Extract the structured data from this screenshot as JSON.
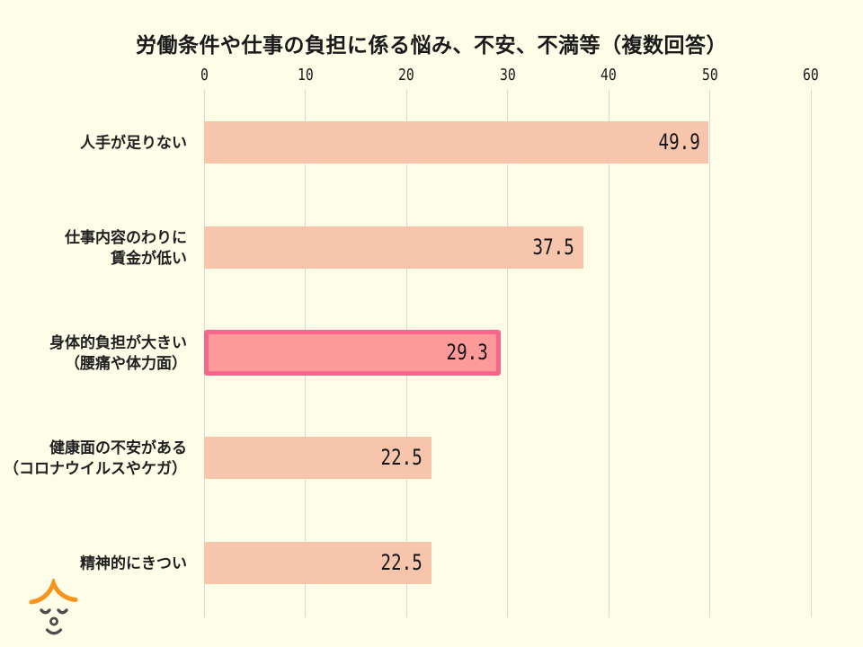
{
  "title": "労働条件や仕事の負担に係る悩み、不安、不満等（複数回答）",
  "chart_data": {
    "type": "bar",
    "orientation": "horizontal",
    "title": "労働条件や仕事の負担に係る悩み、不安、不満等（複数回答）",
    "categories": [
      "人手が足りない",
      "仕事内容のわりに賃金が低い",
      "身体的負担が大きい（腰痛や体力面）",
      "健康面の不安がある（コロナウイルスやケガ）",
      "精神的にきつい"
    ],
    "category_lines": [
      [
        "人手が足りない"
      ],
      [
        "仕事内容のわりに",
        "賃金が低い"
      ],
      [
        "身体的負担が大きい",
        "（腰痛や体力面）"
      ],
      [
        "健康面の不安がある",
        "（コロナウイルスやケガ）"
      ],
      [
        "精神的にきつい"
      ]
    ],
    "values": [
      49.9,
      37.5,
      29.3,
      22.5,
      22.5
    ],
    "value_labels": [
      "49.9",
      "37.5",
      "29.3",
      "22.5",
      "22.5"
    ],
    "highlighted_index": 2,
    "xlim": [
      0,
      60
    ],
    "x_ticks": [
      0,
      10,
      20,
      30,
      40,
      50,
      60
    ],
    "grid": true,
    "legend": false,
    "colors": {
      "background": "#FDFDE8",
      "bar_fill": "#F6C5AB",
      "highlight_fill": "#FD9A9A",
      "highlight_border": "#F9658D",
      "gridline": "#DADADA",
      "text": "#1A1A1A"
    }
  },
  "logo": {
    "label": "mascot-face",
    "colors": {
      "hair": "#F7941D",
      "face": "#4D4D4D"
    }
  }
}
